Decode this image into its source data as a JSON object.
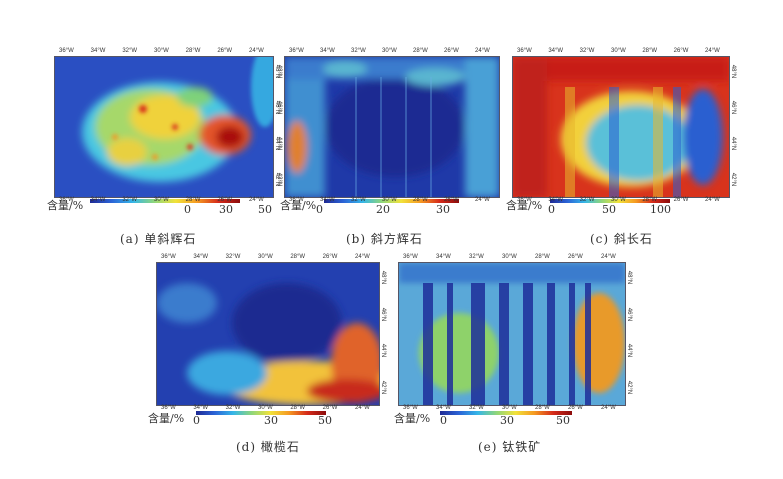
{
  "legend_label": "含量/%",
  "panels": [
    {
      "caption": "(a) 单斜辉石",
      "top_ticks": [
        "36°W",
        "34°W",
        "32°W",
        "30°W",
        "28°W",
        "26°W",
        "24°W"
      ],
      "bottom_ticks": [
        "36°W",
        "34°W",
        "32°W",
        "30°W",
        "28°W",
        "26°W",
        "24°W"
      ],
      "side_ticks": [
        "48°N",
        "46°N",
        "44°N",
        "42°N"
      ],
      "scale": [
        "0",
        "30",
        "50"
      ]
    },
    {
      "caption": "(b) 斜方辉石",
      "top_ticks": [
        "36°W",
        "34°W",
        "32°W",
        "30°W",
        "28°W",
        "26°W",
        "24°W"
      ],
      "bottom_ticks": [
        "36°W",
        "34°W",
        "32°W",
        "30°W",
        "28°W",
        "26°W",
        "24°W"
      ],
      "side_ticks": [
        "48°N",
        "46°N",
        "44°N",
        "42°N"
      ],
      "scale": [
        "0",
        "20",
        "30"
      ]
    },
    {
      "caption": "(c) 斜长石",
      "top_ticks": [
        "36°W",
        "34°W",
        "32°W",
        "30°W",
        "28°W",
        "26°W",
        "24°W"
      ],
      "bottom_ticks": [
        "36°W",
        "34°W",
        "32°W",
        "30°W",
        "28°W",
        "26°W",
        "24°W"
      ],
      "side_ticks": [
        "48°N",
        "46°N",
        "44°N",
        "42°N"
      ],
      "scale": [
        "0",
        "50",
        "100"
      ]
    },
    {
      "caption": "(d) 橄榄石",
      "top_ticks": [
        "36°W",
        "34°W",
        "32°W",
        "30°W",
        "28°W",
        "26°W",
        "24°W"
      ],
      "bottom_ticks": [
        "36°W",
        "34°W",
        "32°W",
        "30°W",
        "28°W",
        "26°W",
        "24°W"
      ],
      "side_ticks": [
        "48°N",
        "46°N",
        "44°N",
        "42°N"
      ],
      "scale": [
        "0",
        "30",
        "50"
      ]
    },
    {
      "caption": "(e) 钛铁矿",
      "top_ticks": [
        "36°W",
        "34°W",
        "32°W",
        "30°W",
        "28°W",
        "26°W",
        "24°W"
      ],
      "bottom_ticks": [
        "36°W",
        "34°W",
        "32°W",
        "30°W",
        "28°W",
        "26°W",
        "24°W"
      ],
      "side_ticks": [
        "48°N",
        "46°N",
        "44°N",
        "42°N"
      ],
      "scale": [
        "0",
        "30",
        "50"
      ]
    }
  ]
}
